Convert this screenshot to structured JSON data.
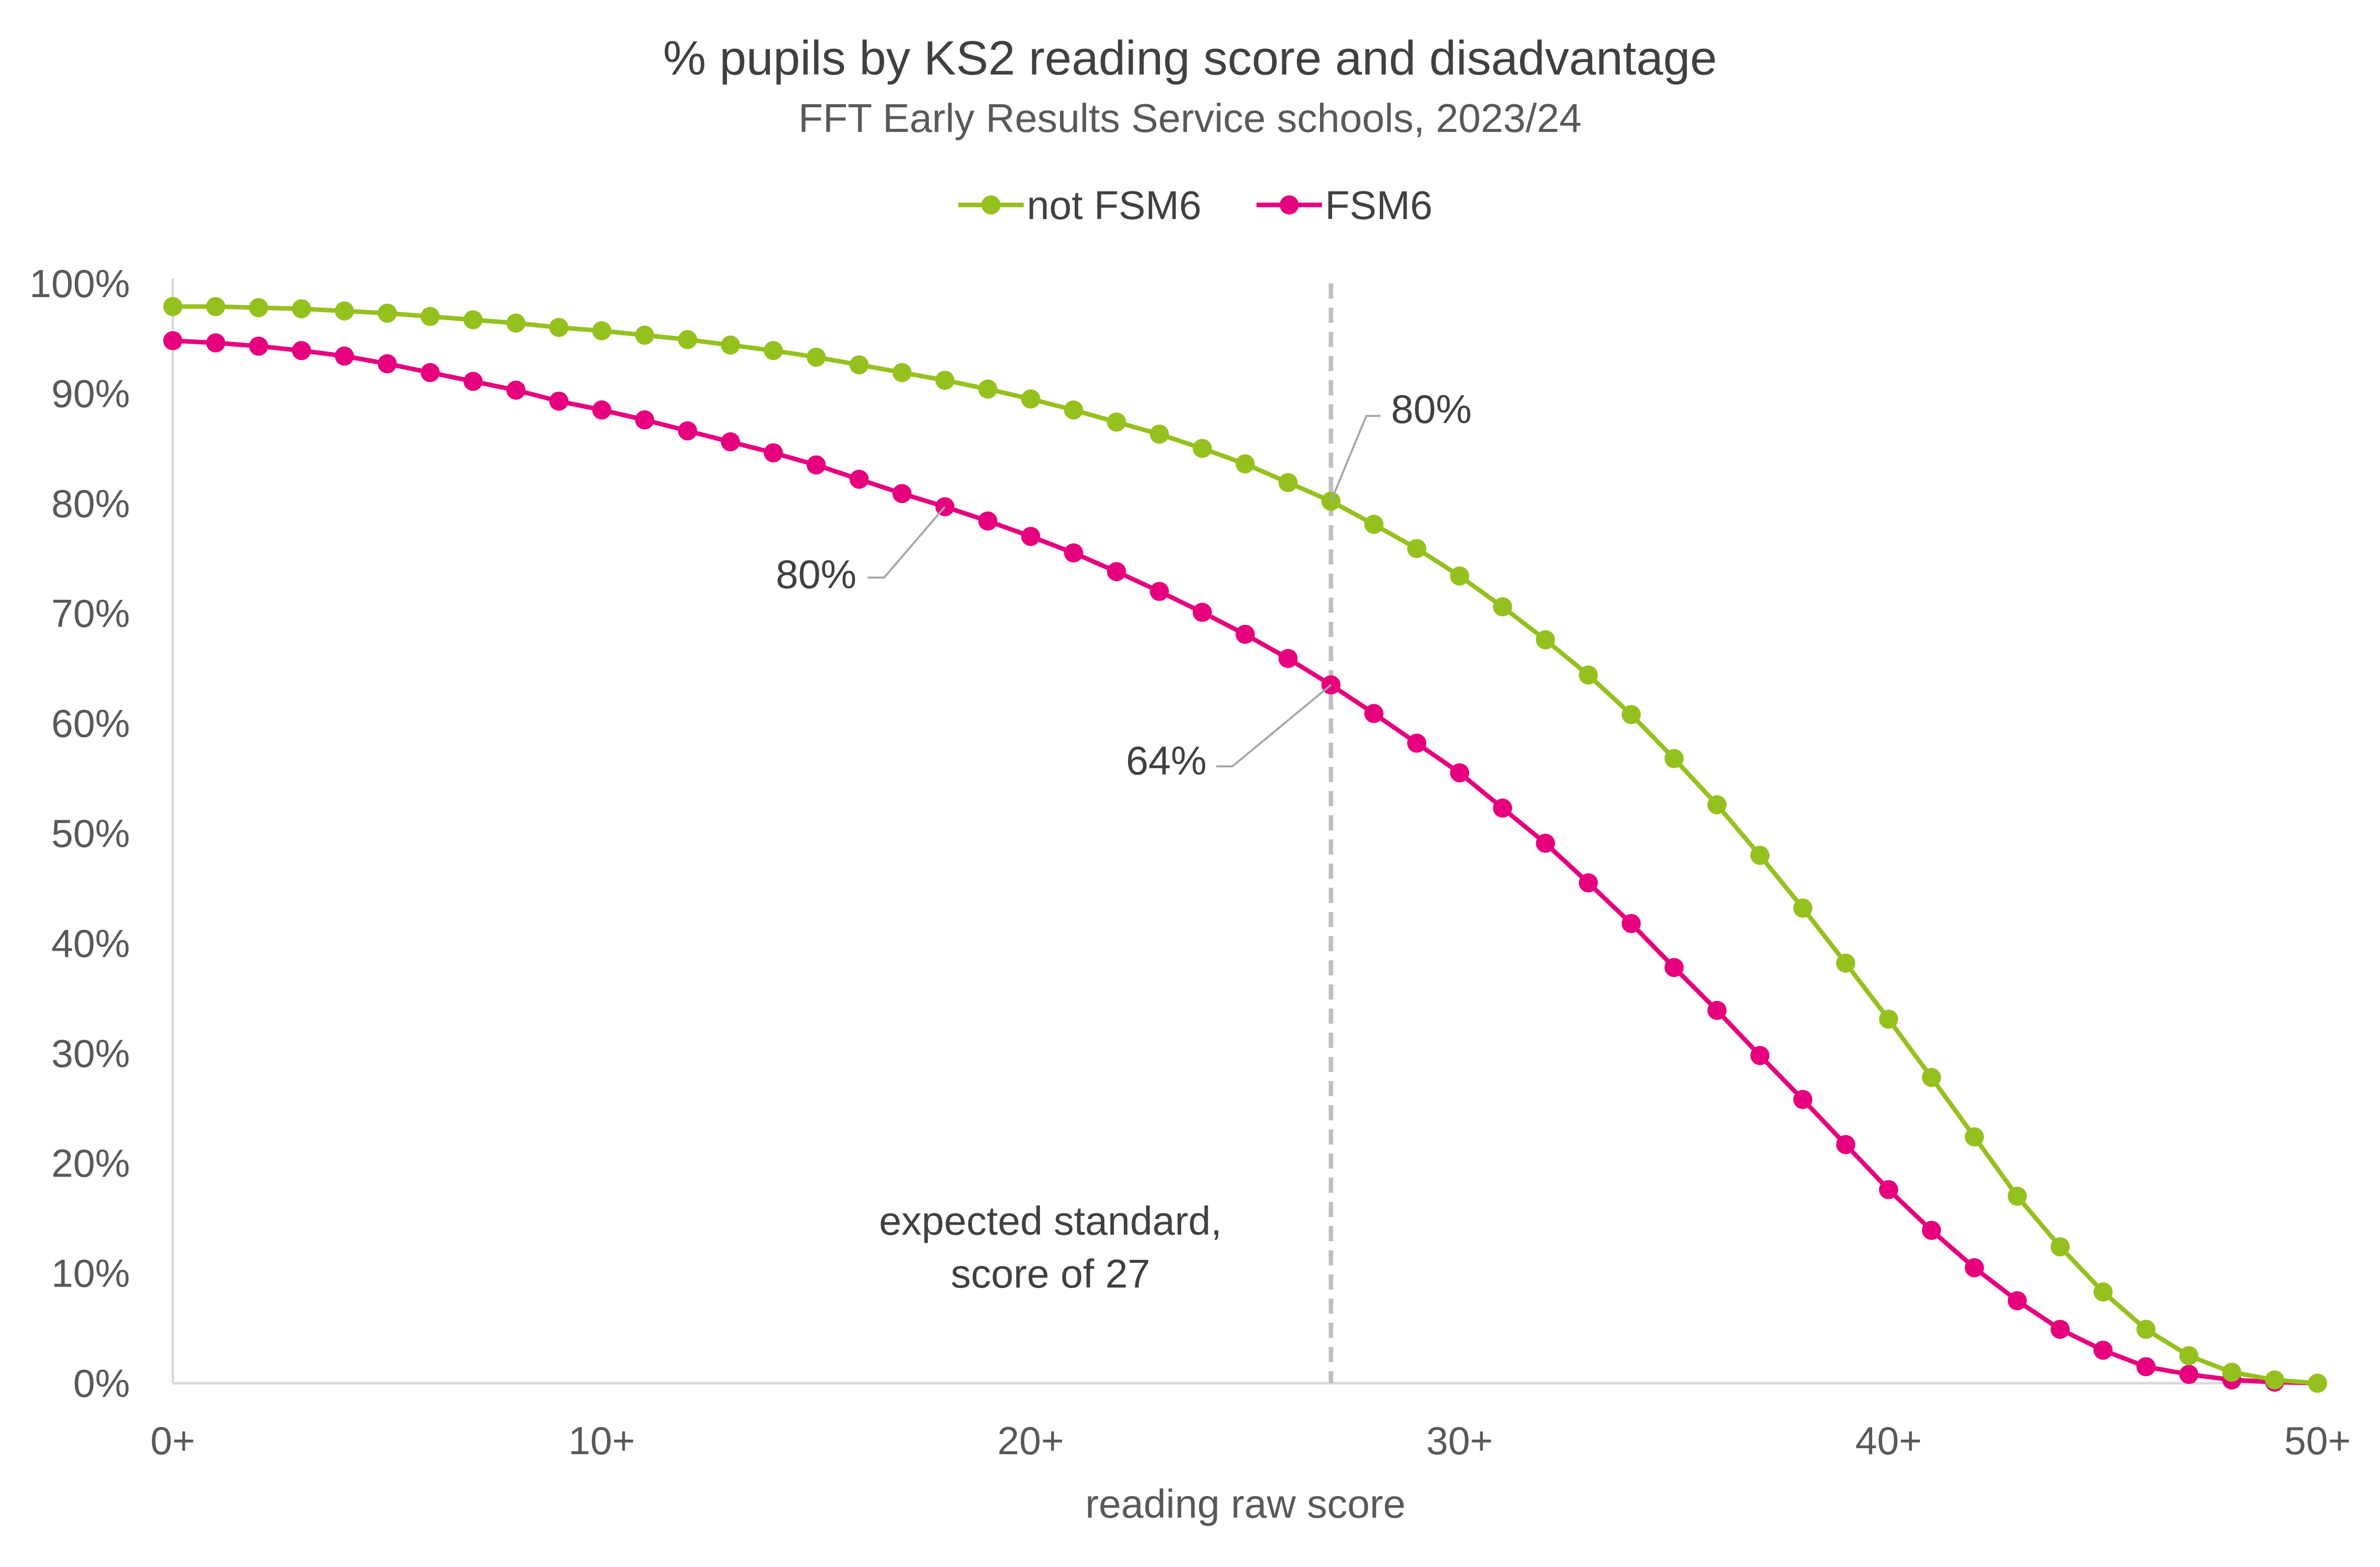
{
  "chart_data": {
    "type": "line",
    "title": "% pupils by KS2 reading score and disadvantage",
    "subtitle": "FFT Early Results Service schools, 2023/24",
    "xlabel": "reading raw score",
    "ylabel": "",
    "xlim": [
      0,
      50
    ],
    "ylim": [
      0,
      100
    ],
    "x_ticks": [
      0,
      10,
      20,
      30,
      40,
      50
    ],
    "x_tick_labels": [
      "0+",
      "10+",
      "20+",
      "30+",
      "40+",
      "50+"
    ],
    "y_ticks": [
      0,
      10,
      20,
      30,
      40,
      50,
      60,
      70,
      80,
      90,
      100
    ],
    "y_tick_labels": [
      "0%",
      "10%",
      "20%",
      "30%",
      "40%",
      "50%",
      "60%",
      "70%",
      "80%",
      "90%",
      "100%"
    ],
    "legend_position": "top-center",
    "grid": false,
    "x": [
      0,
      1,
      2,
      3,
      4,
      5,
      6,
      7,
      8,
      9,
      10,
      11,
      12,
      13,
      14,
      15,
      16,
      17,
      18,
      19,
      20,
      21,
      22,
      23,
      24,
      25,
      26,
      27,
      28,
      29,
      30,
      31,
      32,
      33,
      34,
      35,
      36,
      37,
      38,
      39,
      40,
      41,
      42,
      43,
      44,
      45,
      46,
      47,
      48,
      49,
      50
    ],
    "series": [
      {
        "name": "not FSM6",
        "color": "#95C11F",
        "values": [
          97.9,
          97.9,
          97.8,
          97.7,
          97.5,
          97.3,
          97.0,
          96.7,
          96.4,
          96.0,
          95.7,
          95.3,
          94.9,
          94.4,
          93.9,
          93.3,
          92.6,
          91.9,
          91.2,
          90.4,
          89.5,
          88.5,
          87.4,
          86.3,
          85.0,
          83.6,
          81.9,
          80.2,
          78.1,
          75.9,
          73.4,
          70.6,
          67.6,
          64.4,
          60.8,
          56.8,
          52.6,
          48.0,
          43.2,
          38.2,
          33.1,
          27.8,
          22.4,
          17.0,
          12.4,
          8.3,
          4.9,
          2.5,
          1.0,
          0.3,
          0.0
        ]
      },
      {
        "name": "FSM6",
        "color": "#E6007E",
        "values": [
          94.8,
          94.6,
          94.3,
          93.9,
          93.4,
          92.7,
          91.9,
          91.1,
          90.3,
          89.3,
          88.5,
          87.6,
          86.6,
          85.6,
          84.6,
          83.5,
          82.2,
          80.9,
          79.7,
          78.4,
          77.0,
          75.5,
          73.8,
          72.0,
          70.1,
          68.1,
          65.9,
          63.5,
          60.9,
          58.2,
          55.5,
          52.3,
          49.1,
          45.5,
          41.8,
          37.8,
          33.9,
          29.8,
          25.8,
          21.7,
          17.6,
          13.9,
          10.5,
          7.5,
          4.9,
          3.0,
          1.5,
          0.8,
          0.3,
          0.1,
          0.0
        ]
      }
    ],
    "annotations": [
      {
        "text": "80%",
        "series": "not FSM6",
        "x": 27,
        "y": 80.2
      },
      {
        "text": "80%",
        "series": "FSM6",
        "x": 18,
        "y": 79.7
      },
      {
        "text": "64%",
        "series": "FSM6",
        "x": 27,
        "y": 63.5
      }
    ],
    "reference_line": {
      "x": 27,
      "label_lines": [
        "expected standard,",
        "score of 27"
      ],
      "color": "#BFBFBF"
    }
  }
}
